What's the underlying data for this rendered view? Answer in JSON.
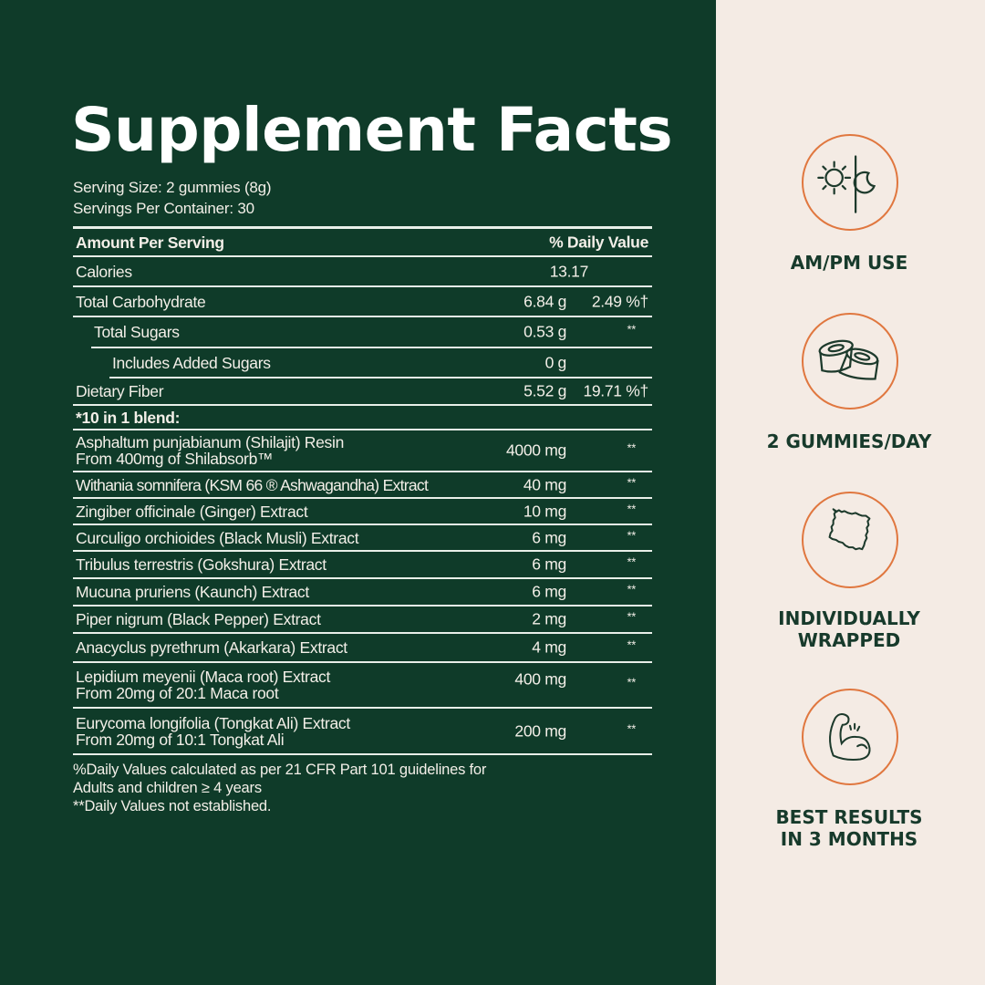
{
  "title": "Supplement Facts",
  "serving_size": "Serving Size: 2 gummies (8g)",
  "servings_per_container": "Servings Per Container: 30",
  "header": {
    "amount": "Amount Per Serving",
    "dv": "% Daily Value"
  },
  "rows": [
    {
      "name": "Calories",
      "amount": "13.17",
      "dv": ""
    },
    {
      "name": "Total Carbohydrate",
      "amount": "6.84 g",
      "dv": "2.49 %†"
    },
    {
      "name": "Total Sugars",
      "amount": "0.53 g",
      "dv": "**"
    },
    {
      "name": "Includes Added Sugars",
      "amount": "0 g",
      "dv": ""
    },
    {
      "name": "Dietary Fiber",
      "amount": "5.52 g",
      "dv": "19.71 %†"
    },
    {
      "name": "*10 in 1 blend:",
      "amount": "",
      "dv": ""
    },
    {
      "name": "Asphaltum punjabianum (Shilajit) Resin",
      "sub": "From 400mg of Shilabsorb™",
      "amount": "4000 mg",
      "dv": "**"
    },
    {
      "name": "Withania somnifera (KSM 66 ® Ashwagandha) Extract",
      "amount": "40 mg",
      "dv": "**"
    },
    {
      "name": "Zingiber officinale (Ginger) Extract",
      "amount": "10 mg",
      "dv": "**"
    },
    {
      "name": "Curculigo orchioides (Black Musli) Extract",
      "amount": "6 mg",
      "dv": "**"
    },
    {
      "name": "Tribulus terrestris (Gokshura) Extract",
      "amount": "6 mg",
      "dv": "**"
    },
    {
      "name": "Mucuna pruriens (Kaunch) Extract",
      "amount": "6 mg",
      "dv": "**"
    },
    {
      "name": "Piper nigrum (Black Pepper) Extract",
      "amount": "2 mg",
      "dv": "**"
    },
    {
      "name": "Anacyclus pyrethrum (Akarkara) Extract",
      "amount": "4 mg",
      "dv": "**"
    },
    {
      "name": "Lepidium meyenii (Maca root) Extract",
      "sub": "From 20mg of 20:1 Maca root",
      "amount": "400 mg",
      "dv": "**"
    },
    {
      "name": "Eurycoma longifolia (Tongkat Ali) Extract",
      "sub": "From 20mg of 10:1 Tongkat Ali",
      "amount": "200 mg",
      "dv": "**"
    }
  ],
  "footnotes": [
    "%Daily Values calculated as per 21 CFR Part 101 guidelines for",
    "Adults and children ≥ 4 years",
    "**Daily Values not established."
  ],
  "features": [
    {
      "icon": "sun-moon-icon",
      "label": "AM/PM USE"
    },
    {
      "icon": "gummies-icon",
      "label": "2 GUMMIES/DAY"
    },
    {
      "icon": "wrapper-icon",
      "label": "INDIVIDUALLY WRAPPED"
    },
    {
      "icon": "flexed-arm-icon",
      "label": "BEST RESULTS IN 3 MONTHS"
    }
  ],
  "colors": {
    "panel": "#0f3b29",
    "side": "#f4ebe4",
    "accent": "#e0773f",
    "text_dark": "#173a2b"
  }
}
